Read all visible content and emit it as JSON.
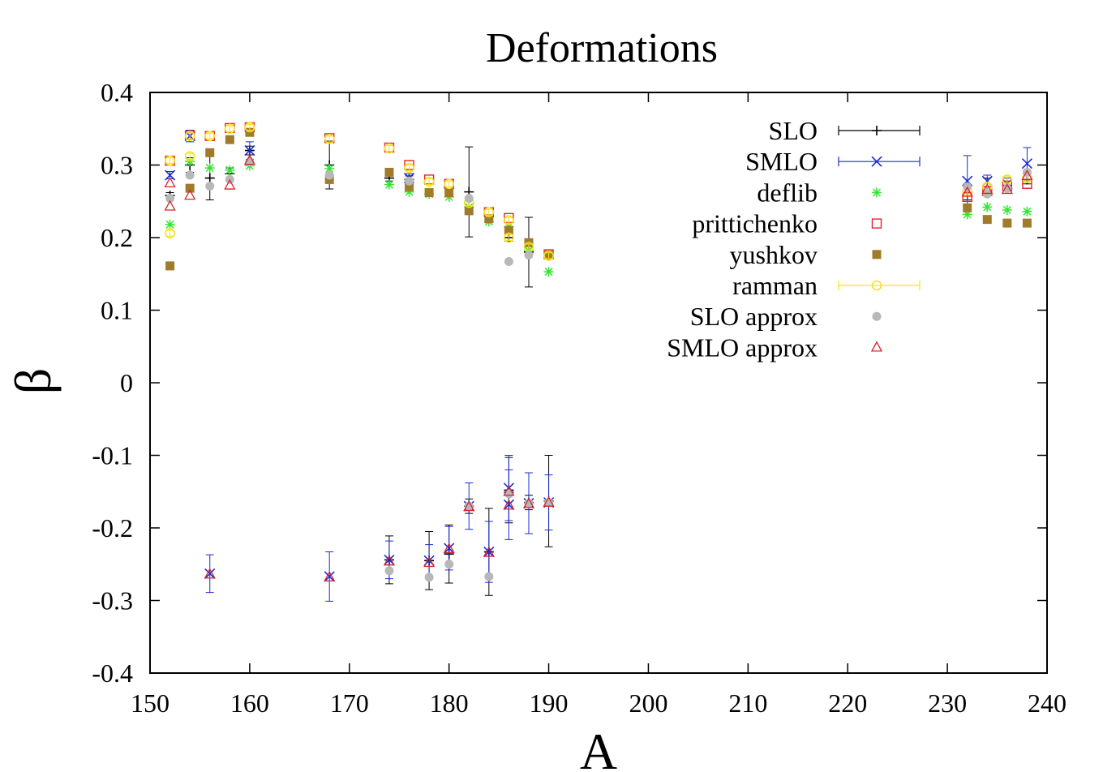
{
  "chart_data": {
    "type": "scatter",
    "title": "Deformations",
    "xlabel": "A",
    "ylabel": "β",
    "xlim": [
      150,
      240
    ],
    "ylim": [
      -0.4,
      0.4
    ],
    "xticks": [
      "150",
      "160",
      "170",
      "180",
      "190",
      "200",
      "210",
      "220",
      "230",
      "240"
    ],
    "yticks": [
      "0.4",
      "0.3",
      "0.2",
      "0.1",
      "0",
      "-0.1",
      "-0.2",
      "-0.3",
      "-0.4"
    ],
    "xtick_values": [
      150,
      160,
      170,
      180,
      190,
      200,
      210,
      220,
      230,
      240
    ],
    "ytick_values": [
      0.4,
      0.3,
      0.2,
      0.1,
      0,
      -0.1,
      -0.2,
      -0.3,
      -0.4
    ],
    "grid": false,
    "legend_position": "top-right",
    "series": [
      {
        "name": "SLO",
        "marker": "plus",
        "color": "#000000",
        "error_bars": true,
        "points": [
          {
            "x": 152,
            "y": 0.258,
            "err": 0.004
          },
          {
            "x": 154,
            "y": 0.3,
            "err": 0.01
          },
          {
            "x": 156,
            "y": 0.282,
            "err": 0.03
          },
          {
            "x": 158,
            "y": 0.288,
            "err": 0.008
          },
          {
            "x": 160,
            "y": 0.32,
            "err": 0.006
          },
          {
            "x": 168,
            "y": 0.3,
            "err": 0.033
          },
          {
            "x": 174,
            "y": 0.282,
            "err": 0.004
          },
          {
            "x": 176,
            "y": 0.28,
            "err": 0.005
          },
          {
            "x": 182,
            "y": 0.263,
            "err": 0.062
          },
          {
            "x": 186,
            "y": 0.2,
            "err": 0.005
          },
          {
            "x": 188,
            "y": 0.18,
            "err": 0.048
          },
          {
            "x": 190,
            "y": 0.175,
            "err": 0.004
          },
          {
            "x": 232,
            "y": 0.262,
            "err": 0.01
          },
          {
            "x": 234,
            "y": 0.27,
            "err": 0.012
          },
          {
            "x": 236,
            "y": 0.272,
            "err": 0.006
          },
          {
            "x": 238,
            "y": 0.28,
            "err": 0.006
          },
          {
            "x": 174,
            "y": -0.244,
            "err": 0.033
          },
          {
            "x": 178,
            "y": -0.245,
            "err": 0.04
          },
          {
            "x": 180,
            "y": -0.236,
            "err": 0.04
          },
          {
            "x": 182,
            "y": -0.17,
            "err": 0.01
          },
          {
            "x": 184,
            "y": -0.233,
            "err": 0.06
          },
          {
            "x": 186,
            "y": -0.148,
            "err": 0.045
          },
          {
            "x": 188,
            "y": -0.165,
            "err": 0.01
          },
          {
            "x": 190,
            "y": -0.163,
            "err": 0.063
          }
        ]
      },
      {
        "name": "SMLO",
        "marker": "x",
        "color": "#1c2bd8",
        "error_bars": true,
        "points": [
          {
            "x": 152,
            "y": 0.286,
            "err": 0.005
          },
          {
            "x": 154,
            "y": 0.34,
            "err": 0.008
          },
          {
            "x": 160,
            "y": 0.32,
            "err": 0.012
          },
          {
            "x": 176,
            "y": 0.282,
            "err": 0.006
          },
          {
            "x": 232,
            "y": 0.278,
            "err": 0.035
          },
          {
            "x": 234,
            "y": 0.278,
            "err": 0.008
          },
          {
            "x": 236,
            "y": 0.274,
            "err": 0.008
          },
          {
            "x": 238,
            "y": 0.302,
            "err": 0.022
          },
          {
            "x": 156,
            "y": -0.263,
            "err": 0.026
          },
          {
            "x": 168,
            "y": -0.267,
            "err": 0.034
          },
          {
            "x": 174,
            "y": -0.244,
            "err": 0.026
          },
          {
            "x": 178,
            "y": -0.245,
            "err": 0.022
          },
          {
            "x": 180,
            "y": -0.228,
            "err": 0.03
          },
          {
            "x": 182,
            "y": -0.17,
            "err": 0.032
          },
          {
            "x": 184,
            "y": -0.233,
            "err": 0.042
          },
          {
            "x": 186,
            "y": -0.145,
            "err": 0.045
          },
          {
            "x": 186,
            "y": -0.168,
            "err": 0.048
          },
          {
            "x": 188,
            "y": -0.166,
            "err": 0.042
          },
          {
            "x": 190,
            "y": -0.165,
            "err": 0.038
          }
        ]
      },
      {
        "name": "deflib",
        "marker": "asterisk",
        "color": "#2ee82e",
        "error_bars": false,
        "points": [
          {
            "x": 152,
            "y": 0.218
          },
          {
            "x": 154,
            "y": 0.305
          },
          {
            "x": 156,
            "y": 0.296
          },
          {
            "x": 158,
            "y": 0.293
          },
          {
            "x": 160,
            "y": 0.299
          },
          {
            "x": 168,
            "y": 0.295
          },
          {
            "x": 174,
            "y": 0.273
          },
          {
            "x": 176,
            "y": 0.263
          },
          {
            "x": 178,
            "y": 0.26
          },
          {
            "x": 180,
            "y": 0.256
          },
          {
            "x": 182,
            "y": 0.242
          },
          {
            "x": 184,
            "y": 0.222
          },
          {
            "x": 186,
            "y": 0.215
          },
          {
            "x": 188,
            "y": 0.182
          },
          {
            "x": 190,
            "y": 0.153
          },
          {
            "x": 232,
            "y": 0.232
          },
          {
            "x": 234,
            "y": 0.242
          },
          {
            "x": 236,
            "y": 0.238
          },
          {
            "x": 238,
            "y": 0.236
          }
        ]
      },
      {
        "name": "prittichenko",
        "marker": "open-square",
        "color": "#e8222a",
        "error_bars": false,
        "points": [
          {
            "x": 152,
            "y": 0.306
          },
          {
            "x": 154,
            "y": 0.341
          },
          {
            "x": 156,
            "y": 0.34
          },
          {
            "x": 158,
            "y": 0.351
          },
          {
            "x": 160,
            "y": 0.352
          },
          {
            "x": 168,
            "y": 0.337
          },
          {
            "x": 174,
            "y": 0.324
          },
          {
            "x": 176,
            "y": 0.3
          },
          {
            "x": 178,
            "y": 0.28
          },
          {
            "x": 180,
            "y": 0.274
          },
          {
            "x": 184,
            "y": 0.235
          },
          {
            "x": 186,
            "y": 0.227
          },
          {
            "x": 190,
            "y": 0.177
          },
          {
            "x": 232,
            "y": 0.256
          },
          {
            "x": 234,
            "y": 0.264
          },
          {
            "x": 236,
            "y": 0.271
          },
          {
            "x": 238,
            "y": 0.274
          }
        ]
      },
      {
        "name": "yushkov",
        "marker": "filled-square",
        "color": "#a07c2a",
        "error_bars": false,
        "points": [
          {
            "x": 152,
            "y": 0.161
          },
          {
            "x": 154,
            "y": 0.268
          },
          {
            "x": 156,
            "y": 0.317
          },
          {
            "x": 158,
            "y": 0.335
          },
          {
            "x": 160,
            "y": 0.345
          },
          {
            "x": 168,
            "y": 0.28
          },
          {
            "x": 174,
            "y": 0.29
          },
          {
            "x": 176,
            "y": 0.27
          },
          {
            "x": 178,
            "y": 0.262
          },
          {
            "x": 180,
            "y": 0.262
          },
          {
            "x": 182,
            "y": 0.237
          },
          {
            "x": 184,
            "y": 0.226
          },
          {
            "x": 186,
            "y": 0.21
          },
          {
            "x": 188,
            "y": 0.193
          },
          {
            "x": 190,
            "y": 0.176
          },
          {
            "x": 232,
            "y": 0.241
          },
          {
            "x": 234,
            "y": 0.225
          },
          {
            "x": 236,
            "y": 0.22
          },
          {
            "x": 238,
            "y": 0.22
          }
        ]
      },
      {
        "name": "ramman",
        "marker": "open-circle",
        "color": "#f6e21a",
        "error_bars": true,
        "points": [
          {
            "x": 152,
            "y": 0.206,
            "err": 0.004
          },
          {
            "x": 152,
            "y": 0.306,
            "err": 0.004
          },
          {
            "x": 154,
            "y": 0.312,
            "err": 0.004
          },
          {
            "x": 154,
            "y": 0.34,
            "err": 0.004
          },
          {
            "x": 156,
            "y": 0.34,
            "err": 0.004
          },
          {
            "x": 158,
            "y": 0.35,
            "err": 0.004
          },
          {
            "x": 160,
            "y": 0.352,
            "err": 0.004
          },
          {
            "x": 168,
            "y": 0.336,
            "err": 0.004
          },
          {
            "x": 174,
            "y": 0.323,
            "err": 0.004
          },
          {
            "x": 176,
            "y": 0.296,
            "err": 0.004
          },
          {
            "x": 178,
            "y": 0.277,
            "err": 0.004
          },
          {
            "x": 180,
            "y": 0.274,
            "err": 0.004
          },
          {
            "x": 182,
            "y": 0.248,
            "err": 0.004
          },
          {
            "x": 184,
            "y": 0.235,
            "err": 0.004
          },
          {
            "x": 186,
            "y": 0.224,
            "err": 0.004
          },
          {
            "x": 186,
            "y": 0.2,
            "err": 0.004
          },
          {
            "x": 188,
            "y": 0.187,
            "err": 0.004
          },
          {
            "x": 190,
            "y": 0.175,
            "err": 0.004
          },
          {
            "x": 232,
            "y": 0.263,
            "err": 0.004
          },
          {
            "x": 234,
            "y": 0.27,
            "err": 0.004
          },
          {
            "x": 236,
            "y": 0.28,
            "err": 0.004
          },
          {
            "x": 238,
            "y": 0.282,
            "err": 0.004
          }
        ]
      },
      {
        "name": "SLO approx",
        "marker": "filled-circle",
        "color": "#b8b8b8",
        "error_bars": false,
        "points": [
          {
            "x": 152,
            "y": 0.254
          },
          {
            "x": 154,
            "y": 0.286
          },
          {
            "x": 156,
            "y": 0.271
          },
          {
            "x": 158,
            "y": 0.28
          },
          {
            "x": 160,
            "y": 0.304
          },
          {
            "x": 168,
            "y": 0.286
          },
          {
            "x": 176,
            "y": 0.278
          },
          {
            "x": 182,
            "y": 0.254
          },
          {
            "x": 186,
            "y": 0.167
          },
          {
            "x": 188,
            "y": 0.176
          },
          {
            "x": 232,
            "y": 0.27
          },
          {
            "x": 234,
            "y": 0.26
          },
          {
            "x": 236,
            "y": 0.268
          },
          {
            "x": 238,
            "y": 0.29
          },
          {
            "x": 174,
            "y": -0.259
          },
          {
            "x": 178,
            "y": -0.268
          },
          {
            "x": 180,
            "y": -0.25
          },
          {
            "x": 182,
            "y": -0.17
          },
          {
            "x": 184,
            "y": -0.267
          },
          {
            "x": 186,
            "y": -0.153
          },
          {
            "x": 188,
            "y": -0.166
          },
          {
            "x": 190,
            "y": -0.165
          }
        ]
      },
      {
        "name": "SMLO approx",
        "marker": "open-triangle",
        "color": "#d8232a",
        "error_bars": false,
        "points": [
          {
            "x": 152,
            "y": 0.243
          },
          {
            "x": 152,
            "y": 0.275
          },
          {
            "x": 154,
            "y": 0.258
          },
          {
            "x": 158,
            "y": 0.272
          },
          {
            "x": 160,
            "y": 0.306
          },
          {
            "x": 232,
            "y": 0.262
          },
          {
            "x": 234,
            "y": 0.266
          },
          {
            "x": 236,
            "y": 0.266
          },
          {
            "x": 238,
            "y": 0.285
          },
          {
            "x": 156,
            "y": -0.264
          },
          {
            "x": 168,
            "y": -0.268
          },
          {
            "x": 174,
            "y": -0.246
          },
          {
            "x": 178,
            "y": -0.248
          },
          {
            "x": 180,
            "y": -0.229
          },
          {
            "x": 182,
            "y": -0.171
          },
          {
            "x": 184,
            "y": -0.234
          },
          {
            "x": 186,
            "y": -0.15
          },
          {
            "x": 186,
            "y": -0.169
          },
          {
            "x": 188,
            "y": -0.167
          },
          {
            "x": 190,
            "y": -0.165
          }
        ]
      }
    ]
  }
}
